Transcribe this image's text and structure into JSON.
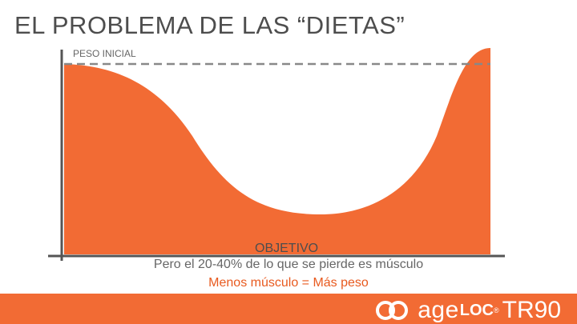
{
  "slide": {
    "title": "EL PROBLEMA DE LAS “DIETAS”",
    "label_initial": "PESO INICIAL",
    "label_goal": "OBJETIVO",
    "caption": "Pero el 20-40% de lo que se pierde es músculo",
    "subcaption": "Menos músculo =  Más peso"
  },
  "brand": {
    "age": "age",
    "loc": "LOC",
    "reg": "®",
    "product": "TR90"
  },
  "colors": {
    "curve_fill": "#f26b34",
    "footer": "#f26b34",
    "subcaption": "#e85a1f",
    "axis": "#555555"
  }
}
